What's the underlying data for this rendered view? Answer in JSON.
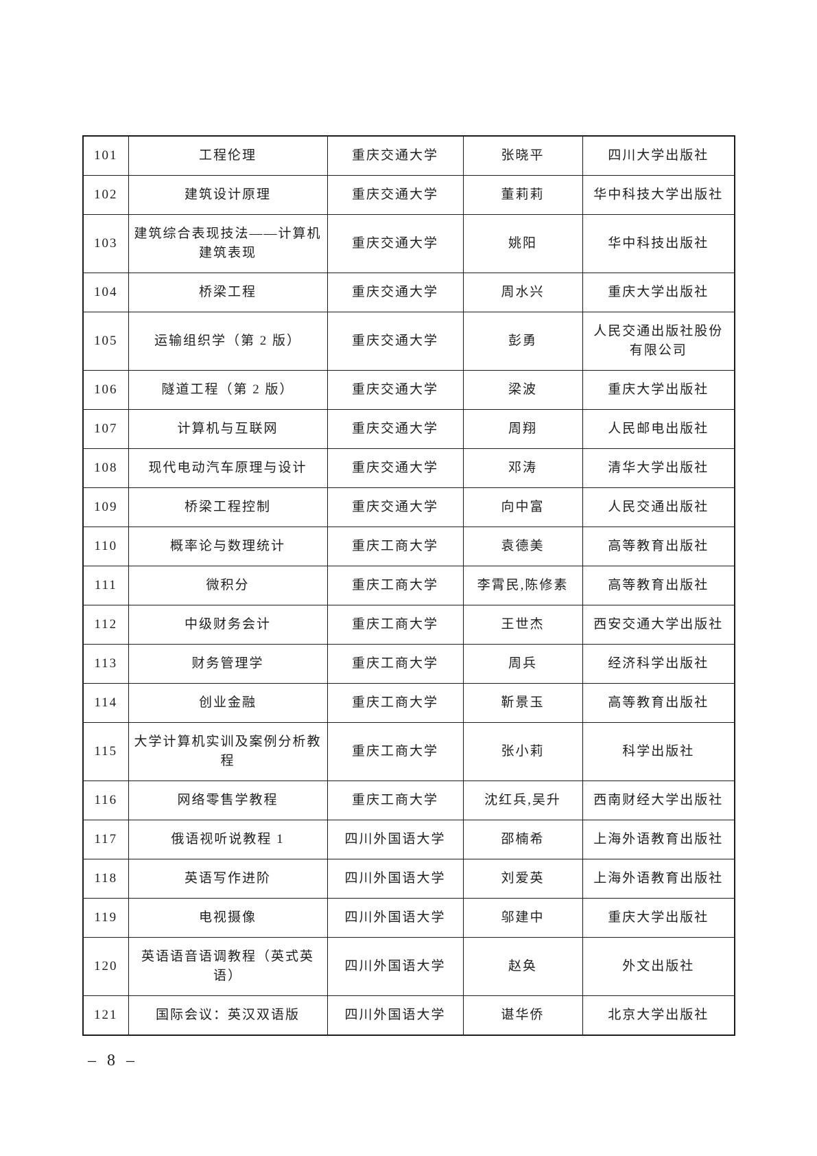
{
  "page": {
    "number_label": "– 8 –"
  },
  "table": {
    "rows": [
      {
        "no": "101",
        "title": "工程伦理",
        "university": "重庆交通大学",
        "author": "张晓平",
        "publisher": "四川大学出版社"
      },
      {
        "no": "102",
        "title": "建筑设计原理",
        "university": "重庆交通大学",
        "author": "董莉莉",
        "publisher": "华中科技大学出版社"
      },
      {
        "no": "103",
        "title": "建筑综合表现技法——计算机建筑表现",
        "university": "重庆交通大学",
        "author": "姚阳",
        "publisher": "华中科技出版社"
      },
      {
        "no": "104",
        "title": "桥梁工程",
        "university": "重庆交通大学",
        "author": "周水兴",
        "publisher": "重庆大学出版社"
      },
      {
        "no": "105",
        "title": "运输组织学（第 2 版）",
        "university": "重庆交通大学",
        "author": "彭勇",
        "publisher": "人民交通出版社股份有限公司"
      },
      {
        "no": "106",
        "title": "隧道工程（第 2 版）",
        "university": "重庆交通大学",
        "author": "梁波",
        "publisher": "重庆大学出版社"
      },
      {
        "no": "107",
        "title": "计算机与互联网",
        "university": "重庆交通大学",
        "author": "周翔",
        "publisher": "人民邮电出版社"
      },
      {
        "no": "108",
        "title": "现代电动汽车原理与设计",
        "university": "重庆交通大学",
        "author": "邓涛",
        "publisher": "清华大学出版社"
      },
      {
        "no": "109",
        "title": "桥梁工程控制",
        "university": "重庆交通大学",
        "author": "向中富",
        "publisher": "人民交通出版社"
      },
      {
        "no": "110",
        "title": "概率论与数理统计",
        "university": "重庆工商大学",
        "author": "袁德美",
        "publisher": "高等教育出版社"
      },
      {
        "no": "111",
        "title": "微积分",
        "university": "重庆工商大学",
        "author": "李霄民,陈修素",
        "publisher": "高等教育出版社"
      },
      {
        "no": "112",
        "title": "中级财务会计",
        "university": "重庆工商大学",
        "author": "王世杰",
        "publisher": "西安交通大学出版社"
      },
      {
        "no": "113",
        "title": "财务管理学",
        "university": "重庆工商大学",
        "author": "周兵",
        "publisher": "经济科学出版社"
      },
      {
        "no": "114",
        "title": "创业金融",
        "university": "重庆工商大学",
        "author": "靳景玉",
        "publisher": "高等教育出版社"
      },
      {
        "no": "115",
        "title": "大学计算机实训及案例分析教程",
        "university": "重庆工商大学",
        "author": "张小莉",
        "publisher": "科学出版社"
      },
      {
        "no": "116",
        "title": "网络零售学教程",
        "university": "重庆工商大学",
        "author": "沈红兵,吴升",
        "publisher": "西南财经大学出版社"
      },
      {
        "no": "117",
        "title": "俄语视听说教程 1",
        "university": "四川外国语大学",
        "author": "邵楠希",
        "publisher": "上海外语教育出版社"
      },
      {
        "no": "118",
        "title": "英语写作进阶",
        "university": "四川外国语大学",
        "author": "刘爱英",
        "publisher": "上海外语教育出版社"
      },
      {
        "no": "119",
        "title": "电视摄像",
        "university": "四川外国语大学",
        "author": "邬建中",
        "publisher": "重庆大学出版社"
      },
      {
        "no": "120",
        "title": "英语语音语调教程（英式英语）",
        "university": "四川外国语大学",
        "author": "赵奂",
        "publisher": "外文出版社"
      },
      {
        "no": "121",
        "title": "国际会议：英汉双语版",
        "university": "四川外国语大学",
        "author": "谌华侨",
        "publisher": "北京大学出版社"
      }
    ]
  }
}
